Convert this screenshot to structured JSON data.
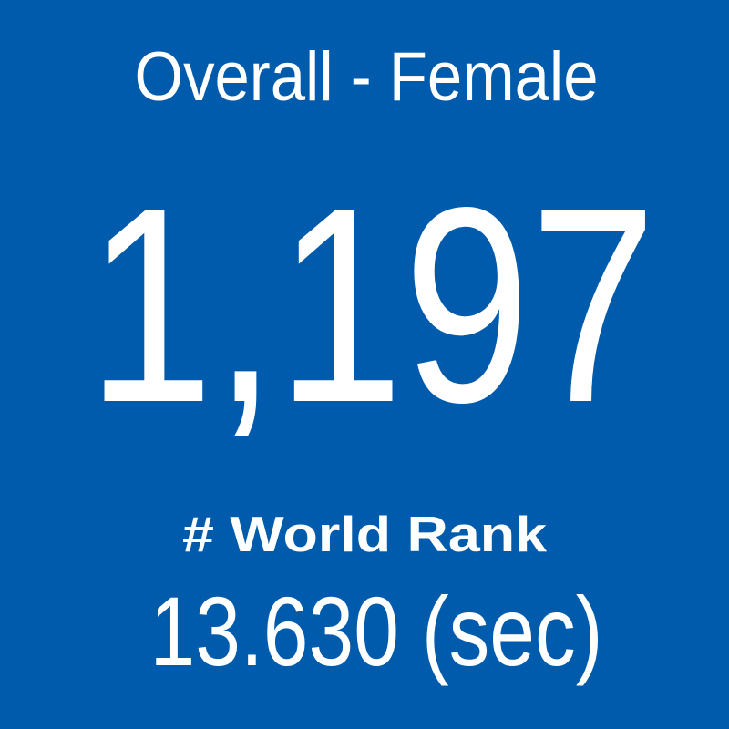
{
  "tile": {
    "title": "Overall - Female",
    "value": "1,197",
    "label": "# World Rank",
    "detail": "13.630 (sec)"
  }
}
